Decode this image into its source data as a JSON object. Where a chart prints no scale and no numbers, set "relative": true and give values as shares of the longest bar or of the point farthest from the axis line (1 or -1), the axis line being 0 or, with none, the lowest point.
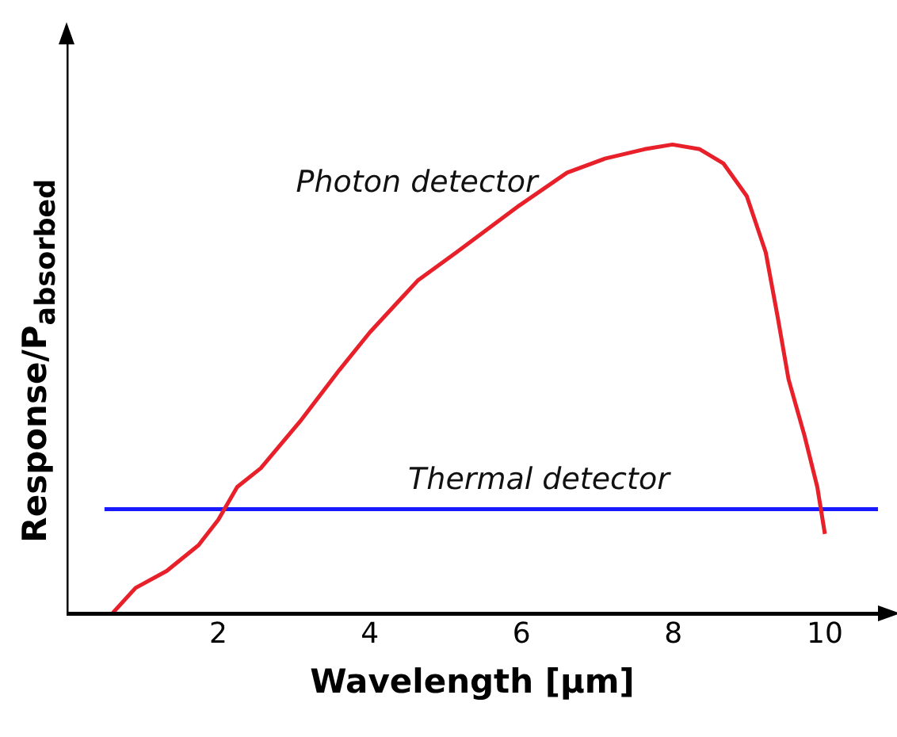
{
  "chart_data": {
    "type": "line",
    "xlabel": "Wavelength [μm]",
    "ylabel": "Response/P$_{absorbed}$",
    "relative": true,
    "xlim": [
      0,
      10.7
    ],
    "xticks": [
      2,
      4,
      6,
      8,
      10
    ],
    "grid": false,
    "legend": false,
    "marker": "none",
    "line_style": "solid",
    "series": [
      {
        "name": "Photon detector",
        "color": "#e8202a",
        "x": [
          0.6,
          0.91,
          1.32,
          1.74,
          2.0,
          2.25,
          2.56,
          3.08,
          3.6,
          4.0,
          4.63,
          5.14,
          5.97,
          6.6,
          7.1,
          7.62,
          7.99,
          8.35,
          8.66,
          8.97,
          9.22,
          9.38,
          9.52,
          9.73,
          9.9,
          10.0
        ],
        "values": [
          0,
          0.055,
          0.091,
          0.146,
          0.2,
          0.27,
          0.31,
          0.41,
          0.52,
          0.6,
          0.71,
          0.77,
          0.87,
          0.94,
          0.97,
          0.99,
          1.0,
          0.99,
          0.96,
          0.89,
          0.77,
          0.63,
          0.5,
          0.38,
          0.27,
          0.17
        ]
      },
      {
        "name": "Thermal detector",
        "color": "#1a1aff",
        "x": [
          0.5,
          10.7
        ],
        "values": [
          0.223,
          0.223
        ]
      }
    ]
  }
}
